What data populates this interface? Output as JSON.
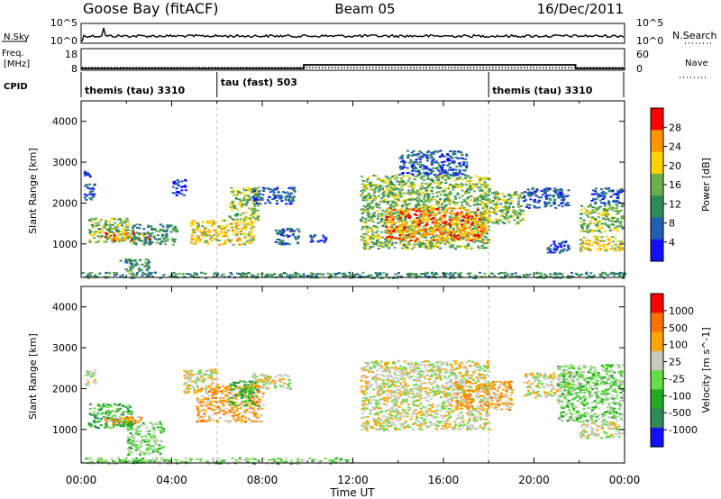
{
  "header": {
    "station": "Goose Bay (fitACF)",
    "beam": "Beam 05",
    "date": "16/Dec/2011"
  },
  "noise_panel": {
    "left_label": "N.Sky",
    "right_label": "N.Search",
    "left_ticks": [
      "10^5",
      "10^0"
    ],
    "right_ticks": [
      "10^5",
      "10^0"
    ]
  },
  "freq_panel": {
    "left_label_1": "Freq.",
    "left_label_2": "[MHz]",
    "right_label": "Nave",
    "left_ticks": [
      "18",
      "8"
    ],
    "right_ticks": [
      "60",
      "0"
    ],
    "nave_levels": [
      {
        "start": "00:00",
        "end": "09:50",
        "value": 5
      },
      {
        "start": "09:50",
        "end": "21:50",
        "value": 15
      },
      {
        "start": "21:50",
        "end": "24:00",
        "value": 5
      }
    ]
  },
  "cpid": {
    "label": "CPID",
    "segments": [
      {
        "text": "themis (tau) 3310",
        "start": "00:00"
      },
      {
        "text": "tau (fast) 503",
        "start": "06:00"
      },
      {
        "text": "themis (tau) 3310",
        "start": "18:00"
      }
    ]
  },
  "x_axis": {
    "title": "Time UT",
    "ticks": [
      "00:00",
      "04:00",
      "08:00",
      "12:00",
      "16:00",
      "20:00",
      "00:00"
    ]
  },
  "chart_data": [
    {
      "type": "heatmap",
      "name": "power",
      "ylabel": "Slant Range [km]",
      "ylim": [
        180,
        4500
      ],
      "yticks": [
        1000,
        2000,
        3000,
        4000
      ],
      "colorbar": {
        "title": "Power [dB]",
        "ticks": [
          4,
          8,
          12,
          16,
          20,
          24,
          28
        ],
        "colors": [
          "#1010ff",
          "#2060b0",
          "#2e8b57",
          "#6ab04c",
          "#ffd200",
          "#ff9600",
          "#ff0000"
        ]
      },
      "regions": [
        {
          "t0": 0.1,
          "t1": 0.6,
          "r0": 2100,
          "r1": 2500,
          "level": 1
        },
        {
          "t0": 0.1,
          "t1": 0.4,
          "r0": 2600,
          "r1": 2800,
          "level": 0
        },
        {
          "t0": 0.3,
          "t1": 2.2,
          "r0": 1050,
          "r1": 1650,
          "level": 3
        },
        {
          "t0": 1.0,
          "t1": 3.0,
          "r0": 1100,
          "r1": 1300,
          "level": 5
        },
        {
          "t0": 1.6,
          "t1": 3.0,
          "r0": 350,
          "r1": 650,
          "level": 2
        },
        {
          "t0": 2.2,
          "t1": 4.2,
          "r0": 1000,
          "r1": 1500,
          "level": 2
        },
        {
          "t0": 4.0,
          "t1": 4.6,
          "r0": 2200,
          "r1": 2600,
          "level": 0
        },
        {
          "t0": 4.8,
          "t1": 7.6,
          "r0": 1000,
          "r1": 1600,
          "level": 4
        },
        {
          "t0": 6.5,
          "t1": 7.8,
          "r0": 1600,
          "r1": 2400,
          "level": 3
        },
        {
          "t0": 7.5,
          "t1": 9.4,
          "r0": 2000,
          "r1": 2400,
          "level": 1
        },
        {
          "t0": 8.5,
          "t1": 9.6,
          "r0": 1000,
          "r1": 1400,
          "level": 1
        },
        {
          "t0": 10.0,
          "t1": 10.8,
          "r0": 1050,
          "r1": 1250,
          "level": 1
        },
        {
          "t0": 12.3,
          "t1": 18.0,
          "r0": 900,
          "r1": 2700,
          "level": 3
        },
        {
          "t0": 13.4,
          "t1": 17.8,
          "r0": 1100,
          "r1": 1900,
          "level": 5
        },
        {
          "t0": 14.0,
          "t1": 17.0,
          "r0": 2700,
          "r1": 3300,
          "level": 1
        },
        {
          "t0": 17.6,
          "t1": 19.5,
          "r0": 1500,
          "r1": 2300,
          "level": 3
        },
        {
          "t0": 19.5,
          "t1": 21.5,
          "r0": 1900,
          "r1": 2400,
          "level": 1
        },
        {
          "t0": 20.5,
          "t1": 21.5,
          "r0": 800,
          "r1": 1100,
          "level": 1
        },
        {
          "t0": 22.0,
          "t1": 23.9,
          "r0": 850,
          "r1": 1200,
          "level": 4
        },
        {
          "t0": 22.0,
          "t1": 23.9,
          "r0": 1300,
          "r1": 2000,
          "level": 3
        },
        {
          "t0": 22.5,
          "t1": 23.9,
          "r0": 2000,
          "r1": 2400,
          "level": 1
        },
        {
          "t0": 0.0,
          "t1": 24.0,
          "r0": 180,
          "r1": 320,
          "level": 2
        }
      ]
    },
    {
      "type": "heatmap",
      "name": "velocity",
      "ylabel": "Slant Range [km]",
      "ylim": [
        180,
        4500
      ],
      "yticks": [
        1000,
        2000,
        3000,
        4000
      ],
      "colorbar": {
        "title": "Velocity [m s^-1]",
        "ticks": [
          1000,
          500,
          100,
          25,
          -25,
          -100,
          -500,
          -1000
        ],
        "colors": [
          "#1010ff",
          "#2e8b57",
          "#22aa22",
          "#66dd44",
          "#c8c8c0",
          "#ffa500",
          "#ff7000",
          "#ff0000"
        ]
      },
      "regions": [
        {
          "t0": 0.1,
          "t1": 0.6,
          "r0": 2100,
          "r1": 2500,
          "level": 4
        },
        {
          "t0": 0.3,
          "t1": 2.2,
          "r0": 1050,
          "r1": 1650,
          "level": 2
        },
        {
          "t0": 1.0,
          "t1": 2.6,
          "r0": 1150,
          "r1": 1350,
          "level": 5
        },
        {
          "t0": 2.0,
          "t1": 3.6,
          "r0": 400,
          "r1": 1200,
          "level": 3
        },
        {
          "t0": 4.5,
          "t1": 6.0,
          "r0": 1900,
          "r1": 2500,
          "level": 4
        },
        {
          "t0": 5.0,
          "t1": 8.0,
          "r0": 1200,
          "r1": 2100,
          "level": 5
        },
        {
          "t0": 6.5,
          "t1": 7.8,
          "r0": 1600,
          "r1": 2200,
          "level": 2
        },
        {
          "t0": 7.5,
          "t1": 9.2,
          "r0": 2000,
          "r1": 2400,
          "level": 4
        },
        {
          "t0": 12.3,
          "t1": 18.0,
          "r0": 1000,
          "r1": 2700,
          "level": 4
        },
        {
          "t0": 16.5,
          "t1": 19.0,
          "r0": 1500,
          "r1": 2200,
          "level": 5
        },
        {
          "t0": 19.5,
          "t1": 21.5,
          "r0": 1800,
          "r1": 2400,
          "level": 4
        },
        {
          "t0": 21.0,
          "t1": 23.9,
          "r0": 1200,
          "r1": 2600,
          "level": 3
        },
        {
          "t0": 22.0,
          "t1": 23.9,
          "r0": 800,
          "r1": 1200,
          "level": 4
        },
        {
          "t0": 0.0,
          "t1": 12.0,
          "r0": 180,
          "r1": 320,
          "level": 3
        }
      ]
    }
  ]
}
